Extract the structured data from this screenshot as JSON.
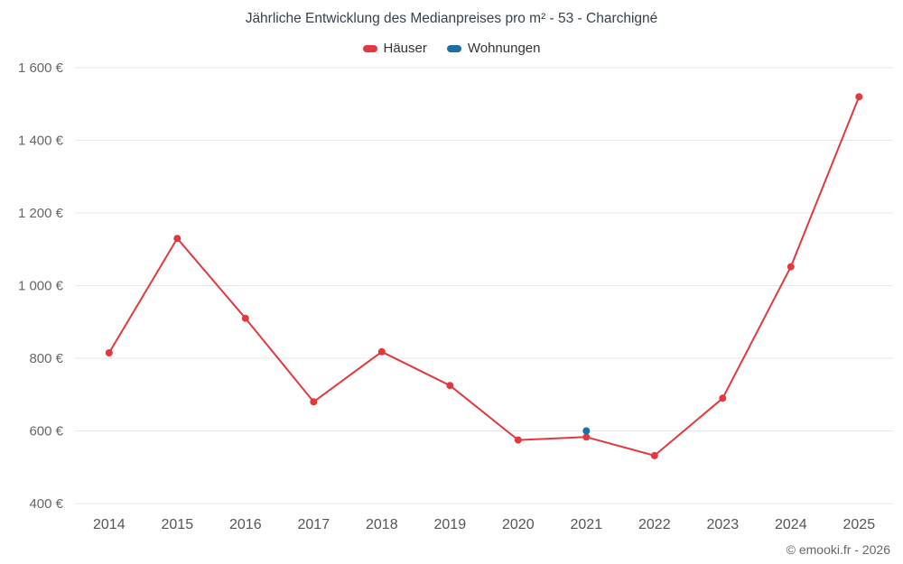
{
  "credit": "© emooki.fr - 2026",
  "chart_data": {
    "type": "line",
    "title": "Jährliche Entwicklung des Medianpreises pro m² - 53 - Charchigné",
    "categories": [
      "2014",
      "2015",
      "2016",
      "2017",
      "2018",
      "2019",
      "2020",
      "2021",
      "2022",
      "2023",
      "2024",
      "2025"
    ],
    "series": [
      {
        "name": "Häuser",
        "color": "#e0393e",
        "values": [
          815,
          1130,
          910,
          680,
          818,
          725,
          575,
          583,
          532,
          690,
          1052,
          1520
        ]
      },
      {
        "name": "Wohnungen",
        "color": "#1d6fa5",
        "values": [
          null,
          null,
          null,
          null,
          null,
          null,
          null,
          600,
          null,
          null,
          null,
          null
        ]
      }
    ],
    "xlabel": "",
    "ylabel": "",
    "ylim": [
      400,
      1600
    ],
    "ytick_step": 200,
    "ytick_suffix": " €",
    "ytick_format": "thousands-space",
    "grid": "horizontal",
    "legend_position": "top",
    "marker_radius": 4,
    "line_width": 2,
    "grid_color": "#e7e7e7",
    "axis_label_color": "#666666",
    "x_label_color": "#555555"
  }
}
